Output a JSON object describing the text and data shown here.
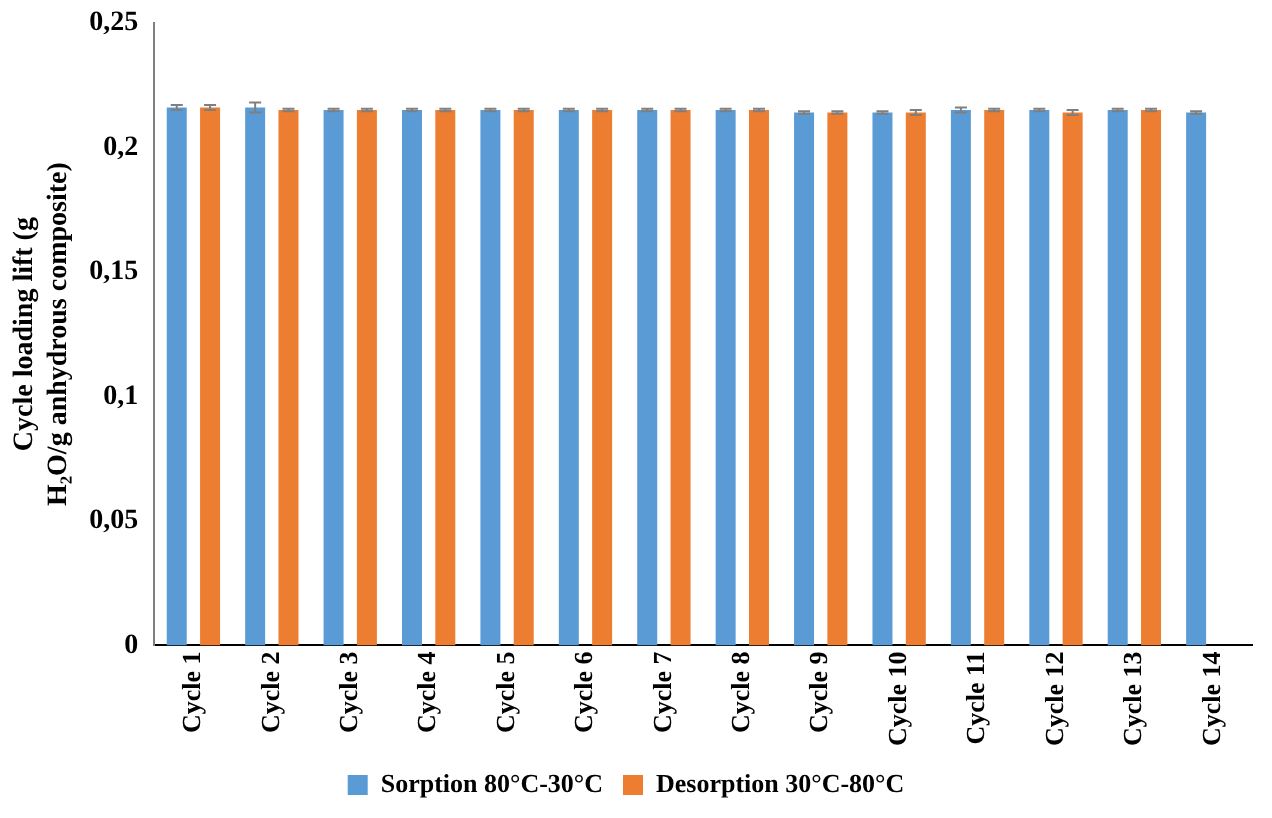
{
  "chart_data": {
    "type": "bar",
    "ylabel": "Cycle loading lift (g H₂O/g anhydrous composite)",
    "categories": [
      "Cycle 1",
      "Cycle 2",
      "Cycle 3",
      "Cycle 4",
      "Cycle 5",
      "Cycle 6",
      "Cycle 7",
      "Cycle 8",
      "Cycle 9",
      "Cycle 10",
      "Cycle 11",
      "Cycle 12",
      "Cycle 13",
      "Cycle 14"
    ],
    "series": [
      {
        "name": "Sorption 80°C-30°C",
        "color": "#5b9bd5",
        "values": [
          0.216,
          0.216,
          0.215,
          0.215,
          0.215,
          0.215,
          0.215,
          0.215,
          0.214,
          0.214,
          0.215,
          0.215,
          0.215,
          0.214
        ],
        "errors": [
          0.001,
          0.002,
          0.0005,
          0.0005,
          0.0005,
          0.0005,
          0.0005,
          0.0005,
          0.0005,
          0.0005,
          0.001,
          0.0005,
          0.0005,
          0.0005
        ]
      },
      {
        "name": "Desorption 30°C-80°C",
        "color": "#ed7d31",
        "values": [
          0.216,
          0.215,
          0.215,
          0.215,
          0.215,
          0.215,
          0.215,
          0.215,
          0.214,
          0.214,
          0.215,
          0.214,
          0.215,
          null
        ],
        "errors": [
          0.001,
          0.0005,
          0.0005,
          0.0005,
          0.0005,
          0.0005,
          0.0005,
          0.0005,
          0.0005,
          0.001,
          0.0005,
          0.001,
          0.0005,
          null
        ]
      }
    ],
    "ylim": [
      0,
      0.25
    ],
    "yticks": [
      {
        "value": 0,
        "label": "0"
      },
      {
        "value": 0.05,
        "label": "0,05"
      },
      {
        "value": 0.1,
        "label": "0,1"
      },
      {
        "value": 0.15,
        "label": "0,15"
      },
      {
        "value": 0.2,
        "label": "0,2"
      },
      {
        "value": 0.25,
        "label": "0,25"
      }
    ],
    "grid": false,
    "legend": "bottom"
  }
}
